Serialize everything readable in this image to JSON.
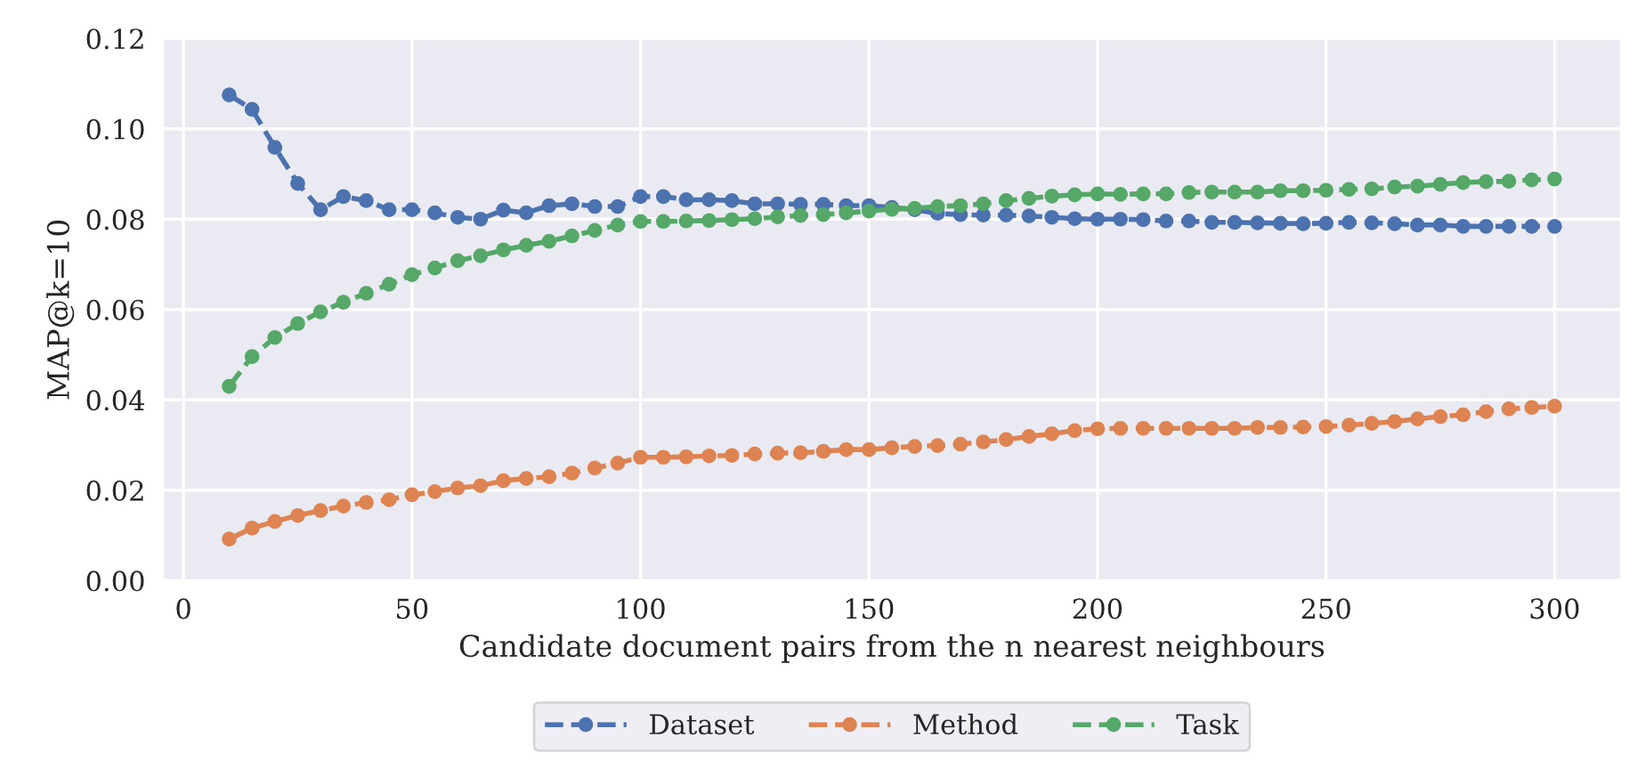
{
  "chart_data": {
    "type": "line",
    "xlabel": "Candidate document pairs from the n nearest neighbours",
    "ylabel": "MAP@k=10",
    "x": [
      10,
      15,
      20,
      25,
      30,
      35,
      40,
      45,
      50,
      55,
      60,
      65,
      70,
      75,
      80,
      85,
      90,
      95,
      100,
      105,
      110,
      115,
      120,
      125,
      130,
      135,
      140,
      145,
      150,
      155,
      160,
      165,
      170,
      175,
      180,
      185,
      190,
      195,
      200,
      205,
      210,
      215,
      220,
      225,
      230,
      235,
      240,
      245,
      250,
      255,
      260,
      265,
      270,
      275,
      280,
      285,
      290,
      295,
      300
    ],
    "series": [
      {
        "name": "Dataset",
        "color": "#4c72b0",
        "values": [
          0.1075,
          0.1043,
          0.0959,
          0.0879,
          0.0821,
          0.085,
          0.0841,
          0.0821,
          0.0821,
          0.0814,
          0.0804,
          0.08,
          0.082,
          0.0814,
          0.083,
          0.0834,
          0.0828,
          0.0828,
          0.085,
          0.085,
          0.0843,
          0.0843,
          0.0841,
          0.0834,
          0.0834,
          0.0833,
          0.0833,
          0.083,
          0.083,
          0.0826,
          0.0821,
          0.0813,
          0.081,
          0.0809,
          0.0809,
          0.0807,
          0.0804,
          0.0801,
          0.08,
          0.08,
          0.0799,
          0.0796,
          0.0796,
          0.0793,
          0.0793,
          0.0792,
          0.0791,
          0.079,
          0.0791,
          0.0793,
          0.0792,
          0.079,
          0.0787,
          0.0787,
          0.0784,
          0.0784,
          0.0784,
          0.0784,
          0.0784
        ]
      },
      {
        "name": "Method",
        "color": "#dd8452",
        "values": [
          0.0092,
          0.0116,
          0.0131,
          0.0144,
          0.0155,
          0.0165,
          0.0173,
          0.0179,
          0.019,
          0.0197,
          0.0205,
          0.021,
          0.0221,
          0.0226,
          0.023,
          0.0238,
          0.0249,
          0.026,
          0.0273,
          0.0273,
          0.0274,
          0.0276,
          0.0277,
          0.028,
          0.0282,
          0.0283,
          0.0286,
          0.029,
          0.029,
          0.0294,
          0.0297,
          0.0299,
          0.0302,
          0.0307,
          0.0312,
          0.0319,
          0.0325,
          0.0332,
          0.0336,
          0.0337,
          0.0337,
          0.0337,
          0.0337,
          0.0337,
          0.0337,
          0.0339,
          0.0339,
          0.034,
          0.0341,
          0.0344,
          0.0348,
          0.0352,
          0.0358,
          0.0363,
          0.0367,
          0.0374,
          0.038,
          0.0383,
          0.0386
        ]
      },
      {
        "name": "Task",
        "color": "#55a868",
        "values": [
          0.043,
          0.0496,
          0.0538,
          0.0569,
          0.0595,
          0.0616,
          0.0636,
          0.0656,
          0.0677,
          0.0692,
          0.0708,
          0.0719,
          0.0732,
          0.0742,
          0.0751,
          0.0763,
          0.0775,
          0.0787,
          0.0795,
          0.0795,
          0.0796,
          0.0797,
          0.0799,
          0.0801,
          0.0805,
          0.0808,
          0.081,
          0.0814,
          0.0818,
          0.0822,
          0.0824,
          0.0828,
          0.083,
          0.0834,
          0.0841,
          0.0846,
          0.0851,
          0.0854,
          0.0856,
          0.0855,
          0.0856,
          0.0856,
          0.0859,
          0.086,
          0.086,
          0.086,
          0.0863,
          0.0863,
          0.0864,
          0.0866,
          0.0867,
          0.0871,
          0.0873,
          0.0877,
          0.0881,
          0.0883,
          0.0884,
          0.0887,
          0.0889
        ]
      }
    ],
    "xlim": [
      -4.5,
      314.5
    ],
    "xticks": [
      0,
      50,
      100,
      150,
      200,
      250,
      300
    ],
    "ylim": [
      0,
      0.12
    ],
    "yticks": [
      {
        "value": 0,
        "label": "0.00"
      },
      {
        "value": 0.02,
        "label": "0.02"
      },
      {
        "value": 0.04,
        "label": "0.04"
      },
      {
        "value": 0.06,
        "label": "0.06"
      },
      {
        "value": 0.08,
        "label": "0.08"
      },
      {
        "value": 0.1,
        "label": "0.10"
      },
      {
        "value": 0.12,
        "label": "0.12"
      }
    ],
    "grid": true,
    "legend": "bottom",
    "marker": "circle",
    "line_style": "dashed"
  }
}
